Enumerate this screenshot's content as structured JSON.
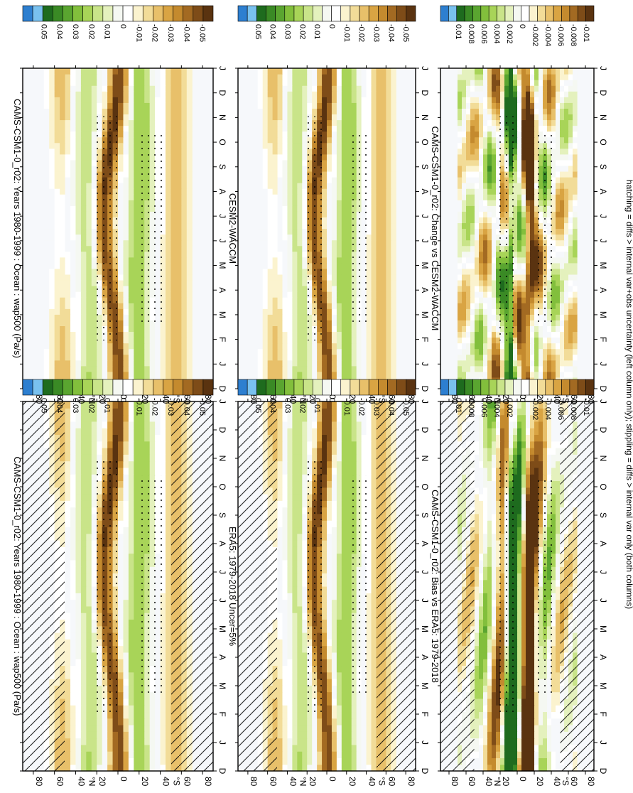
{
  "figure": {
    "footnote": "hatching = diffs > internal var+obs uncertainty (left column only); stippling = diffs > internal var only (both columns)"
  },
  "colorbars": [
    {
      "labels": [
        "0.05",
        "0.04",
        "0.03",
        "0.02",
        "0.01",
        "0",
        "-0.01",
        "-0.02",
        "-0.03",
        "-0.04",
        "-0.05"
      ]
    },
    {
      "labels": [
        "0.01",
        "0.008",
        "0.006",
        "0.004",
        "0.002",
        "0",
        "-0.002",
        "-0.004",
        "-0.006",
        "-0.008",
        "-0.01"
      ]
    }
  ],
  "colors": {
    "scale": [
      "#2d7fd0",
      "#79c1ef",
      "#1e6b1e",
      "#3a8a25",
      "#5aa530",
      "#82bf3c",
      "#a8d458",
      "#c9e489",
      "#e4f1bd",
      "#f5f8f2",
      "#ffffff",
      "#fbf3cf",
      "#f2dc98",
      "#e8c06a",
      "#d9a443",
      "#c48a2e",
      "#a36a22",
      "#7e4c18",
      "#5a3310"
    ],
    "hatch": "#000000"
  },
  "chart_data": [
    {
      "type": "heatmap",
      "title": "CAMS-CSM1-0_r02: Years 1980-1999 : Ocean : wap500 (Pa/s)",
      "x": [
        "D",
        "J",
        "F",
        "M",
        "A",
        "M",
        "J",
        "J",
        "A",
        "S",
        "O",
        "N",
        "D",
        "J"
      ],
      "y_ticks": [
        "80",
        "60",
        "40",
        "20",
        "0",
        "20",
        "40",
        "60",
        "80"
      ],
      "y_unit": "°N / °S",
      "colorbar": [
        "0.05",
        "0.04",
        "0.03",
        "0.02",
        "0.01",
        "0",
        "-0.01",
        "-0.02",
        "-0.03",
        "-0.04",
        "-0.05"
      ],
      "hatching": true,
      "stippling": true
    },
    {
      "type": "heatmap",
      "title": "CAMS-CSM1-0_r02: Years 1980-1999 : Ocean : wap500 (Pa/s)",
      "x": [
        "D",
        "J",
        "F",
        "M",
        "A",
        "M",
        "J",
        "J",
        "A",
        "S",
        "O",
        "N",
        "D",
        "J"
      ],
      "y_ticks": [
        "80",
        "60",
        "40",
        "20",
        "0",
        "20",
        "40",
        "60",
        "80"
      ],
      "colorbar": [
        "0.05",
        "0.04",
        "0.03",
        "0.02",
        "0.01",
        "0",
        "-0.01",
        "-0.02",
        "-0.03",
        "-0.04",
        "-0.05"
      ],
      "hatching": false,
      "stippling": true
    },
    {
      "type": "heatmap",
      "title": "ERA5: 1979-2018 Uncer=5%",
      "x": [
        "D",
        "J",
        "F",
        "M",
        "A",
        "M",
        "J",
        "J",
        "A",
        "S",
        "O",
        "N",
        "D",
        "J"
      ],
      "y_ticks": [
        "80",
        "60",
        "40",
        "20",
        "0",
        "20",
        "40",
        "60",
        "80"
      ],
      "colorbar": [
        "0.05",
        "0.04",
        "0.03",
        "0.02",
        "0.01",
        "0",
        "-0.01",
        "-0.02",
        "-0.03",
        "-0.04",
        "-0.05"
      ],
      "hatching": true,
      "stippling": true
    },
    {
      "type": "heatmap",
      "title": "CESM2-WACCM",
      "x": [
        "D",
        "J",
        "F",
        "M",
        "A",
        "M",
        "J",
        "J",
        "A",
        "S",
        "O",
        "N",
        "D",
        "J"
      ],
      "y_ticks": [
        "80",
        "60",
        "40",
        "20",
        "0",
        "20",
        "40",
        "60",
        "80"
      ],
      "colorbar": [
        "0.05",
        "0.04",
        "0.03",
        "0.02",
        "0.01",
        "0",
        "-0.01",
        "-0.02",
        "-0.03",
        "-0.04",
        "-0.05"
      ],
      "hatching": false,
      "stippling": true
    },
    {
      "type": "heatmap",
      "title": "CAMS-CSM1-0_r02: Bias vs ERA5: 1979-2018",
      "x": [
        "D",
        "J",
        "F",
        "M",
        "A",
        "M",
        "J",
        "J",
        "A",
        "S",
        "O",
        "N",
        "D",
        "J"
      ],
      "y_ticks": [
        "80",
        "60",
        "40",
        "20",
        "0",
        "20",
        "40",
        "60",
        "80"
      ],
      "colorbar": [
        "0.01",
        "0.008",
        "0.006",
        "0.004",
        "0.002",
        "0",
        "-0.002",
        "-0.004",
        "-0.006",
        "-0.008",
        "-0.01"
      ],
      "hatching": true,
      "stippling": true
    },
    {
      "type": "heatmap",
      "title": "CAMS-CSM1-0_r02: Change vs CESM2-WACCM",
      "x": [
        "D",
        "J",
        "F",
        "M",
        "A",
        "M",
        "J",
        "J",
        "A",
        "S",
        "O",
        "N",
        "D",
        "J"
      ],
      "y_ticks": [
        "80",
        "60",
        "40",
        "20",
        "0",
        "20",
        "40",
        "60",
        "80"
      ],
      "colorbar": [
        "0.01",
        "0.008",
        "0.006",
        "0.004",
        "0.002",
        "0",
        "-0.002",
        "-0.004",
        "-0.006",
        "-0.008",
        "-0.01"
      ],
      "hatching": false,
      "stippling": true
    }
  ]
}
